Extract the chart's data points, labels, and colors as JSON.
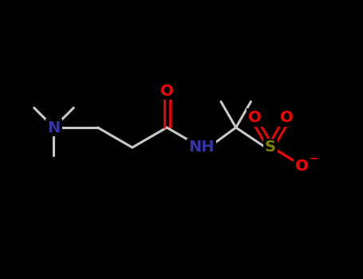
{
  "background_color": "#000000",
  "N_color": "#3333aa",
  "O_color": "#ff0000",
  "S_color": "#808000",
  "C_color": "#c8c8c8",
  "bond_color": "#c8c8c8",
  "figsize": [
    4.55,
    3.5
  ],
  "dpi": 100,
  "xlim": [
    0,
    9
  ],
  "ylim": [
    0,
    7
  ],
  "bond_width": 2.2,
  "font_size_atom": 14,
  "font_size_small": 11
}
